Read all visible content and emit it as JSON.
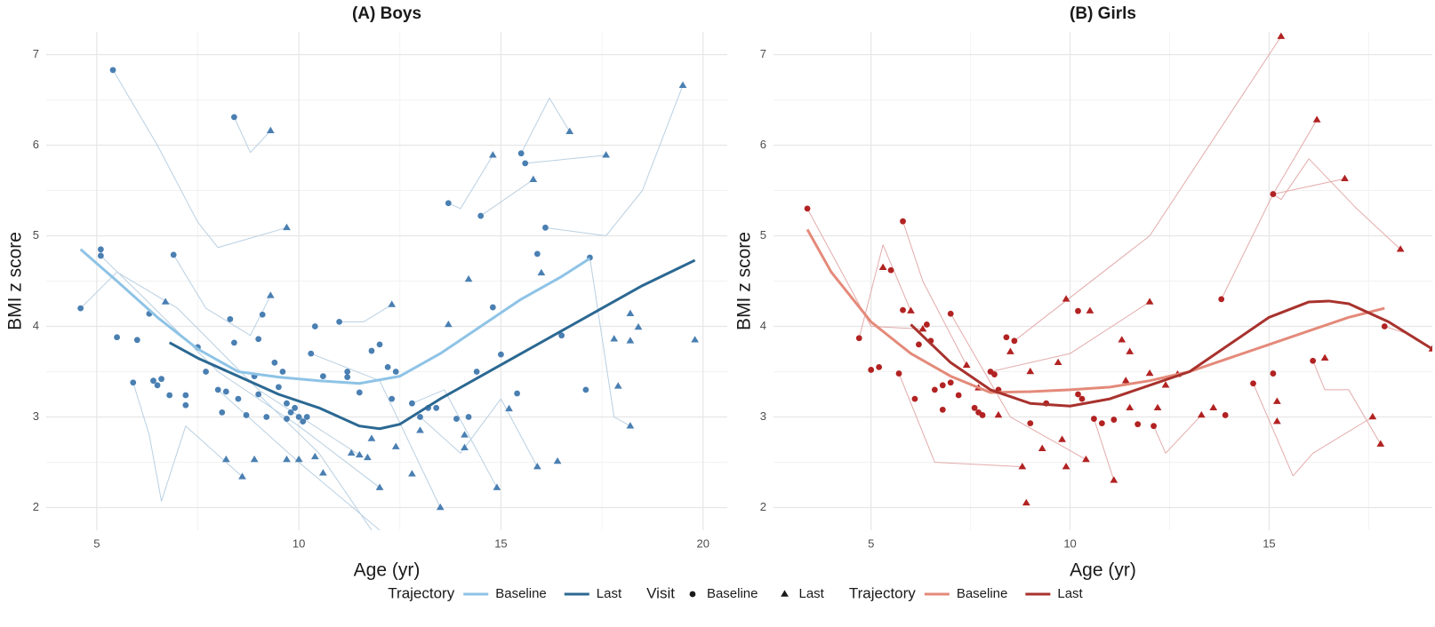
{
  "chart_data": [
    {
      "type": "scatter",
      "title": "(A) Boys",
      "xlabel": "Age (yr)",
      "ylabel": "BMI z score",
      "xlim": [
        3.75,
        20.6
      ],
      "ylim": [
        1.75,
        7.25
      ],
      "xticks": [
        5,
        10,
        15,
        20
      ],
      "yticks": [
        2,
        3,
        4,
        5,
        6,
        7
      ],
      "grid": true,
      "trajectory_color": "#b9d0e2",
      "trajectories": [
        {
          "x": [
            5.4,
            6.5,
            7.5,
            8.0,
            9.7
          ],
          "y": [
            6.83,
            6.0,
            5.15,
            4.87,
            5.09
          ]
        },
        {
          "x": [
            8.4,
            8.8,
            9.3
          ],
          "y": [
            6.31,
            5.92,
            6.16
          ]
        },
        {
          "x": [
            13.7,
            14.0,
            14.8
          ],
          "y": [
            5.36,
            5.3,
            5.89
          ]
        },
        {
          "x": [
            14.5,
            15.8
          ],
          "y": [
            5.22,
            5.62
          ]
        },
        {
          "x": [
            15.6,
            17.6
          ],
          "y": [
            5.8,
            5.89
          ]
        },
        {
          "x": [
            15.5,
            16.2,
            16.7
          ],
          "y": [
            5.91,
            6.52,
            6.15
          ]
        },
        {
          "x": [
            16.1,
            17.6,
            18.5,
            19.5
          ],
          "y": [
            5.09,
            5.0,
            5.5,
            6.66
          ]
        },
        {
          "x": [
            6.9,
            7.7,
            8.8,
            9.3
          ],
          "y": [
            4.79,
            4.2,
            3.9,
            4.34
          ]
        },
        {
          "x": [
            5.9,
            6.3,
            6.6,
            7.2,
            8.6
          ],
          "y": [
            3.38,
            2.8,
            2.07,
            2.9,
            2.34
          ]
        },
        {
          "x": [
            4.6,
            5.5,
            7.0,
            9.0,
            11.5
          ],
          "y": [
            4.2,
            4.6,
            4.2,
            3.3,
            2.58
          ]
        },
        {
          "x": [
            5.1,
            6.2,
            8.0,
            10.0,
            12.0
          ],
          "y": [
            4.78,
            4.3,
            3.5,
            2.9,
            2.22
          ]
        },
        {
          "x": [
            9.0,
            10.5,
            11.8
          ],
          "y": [
            3.25,
            2.6,
            1.75
          ]
        },
        {
          "x": [
            11.0,
            11.6,
            12.3
          ],
          "y": [
            4.05,
            4.05,
            4.24
          ]
        },
        {
          "x": [
            17.2,
            17.8,
            18.2
          ],
          "y": [
            4.76,
            3.0,
            2.9
          ]
        },
        {
          "x": [
            13.0,
            14.0,
            15.0,
            15.9
          ],
          "y": [
            3.0,
            2.6,
            3.2,
            2.45
          ]
        },
        {
          "x": [
            8.0,
            10.0,
            12.0
          ],
          "y": [
            3.3,
            2.5,
            1.75
          ]
        },
        {
          "x": [
            10.3,
            12.0,
            13.5
          ],
          "y": [
            3.7,
            3.4,
            2.0
          ]
        },
        {
          "x": [
            12.8,
            13.6,
            14.9
          ],
          "y": [
            3.15,
            3.3,
            2.22
          ]
        }
      ],
      "series": [
        {
          "name": "Baseline",
          "style": "points",
          "marker": "circle",
          "color": "#4a7fb2",
          "x": [
            4.6,
            5.1,
            5.1,
            5.4,
            5.5,
            5.9,
            6.0,
            6.3,
            6.4,
            6.5,
            6.6,
            6.8,
            6.9,
            7.2,
            7.2,
            7.5,
            7.7,
            8.0,
            8.1,
            8.2,
            8.4,
            8.3,
            8.4,
            8.5,
            8.7,
            8.9,
            9.0,
            9.1,
            9.0,
            9.2,
            9.4,
            9.5,
            9.6,
            9.7,
            9.7,
            9.8,
            9.9,
            10.0,
            10.1,
            10.2,
            10.3,
            10.4,
            10.6,
            11.0,
            11.2,
            11.2,
            11.5,
            11.8,
            12.0,
            12.2,
            12.3,
            12.4,
            12.8,
            13.0,
            13.2,
            13.4,
            13.7,
            13.9,
            14.2,
            14.4,
            14.5,
            14.8,
            15.0,
            15.4,
            15.5,
            15.6,
            15.9,
            16.1,
            16.5,
            17.1,
            17.2
          ],
          "y": [
            4.2,
            4.85,
            4.78,
            6.83,
            3.88,
            3.38,
            3.85,
            4.14,
            3.4,
            3.35,
            3.42,
            3.24,
            4.79,
            3.13,
            3.24,
            3.77,
            3.5,
            3.3,
            3.05,
            3.28,
            6.31,
            4.08,
            3.82,
            3.2,
            3.02,
            3.45,
            3.86,
            4.13,
            3.25,
            3.0,
            3.6,
            3.33,
            3.5,
            3.15,
            2.98,
            3.05,
            3.1,
            3.0,
            2.95,
            3.0,
            3.7,
            4.0,
            3.45,
            4.05,
            3.5,
            3.44,
            3.27,
            3.73,
            3.8,
            3.55,
            3.2,
            3.5,
            3.15,
            3.0,
            3.1,
            3.1,
            5.36,
            2.98,
            3.0,
            3.5,
            5.22,
            4.21,
            3.69,
            3.26,
            5.91,
            5.8,
            4.8,
            5.09,
            3.9,
            3.3,
            4.76
          ]
        },
        {
          "name": "Last",
          "style": "points",
          "marker": "triangle",
          "color": "#4a7fb2",
          "x": [
            6.7,
            8.2,
            8.6,
            8.9,
            9.3,
            9.3,
            9.7,
            9.7,
            10.0,
            10.4,
            10.6,
            11.3,
            11.5,
            11.7,
            11.8,
            12.0,
            12.3,
            12.4,
            12.8,
            13.0,
            13.5,
            13.7,
            14.1,
            14.1,
            14.2,
            14.8,
            14.9,
            15.2,
            15.8,
            15.9,
            16.0,
            16.4,
            16.7,
            17.6,
            17.8,
            17.9,
            18.2,
            18.2,
            18.2,
            18.4,
            19.5,
            19.8
          ],
          "y": [
            4.27,
            2.53,
            2.34,
            2.53,
            6.16,
            4.34,
            5.09,
            2.53,
            2.53,
            2.56,
            2.38,
            2.6,
            2.58,
            2.55,
            2.76,
            2.22,
            4.24,
            2.67,
            2.37,
            2.85,
            2.0,
            4.02,
            2.66,
            2.8,
            4.52,
            5.89,
            2.22,
            3.09,
            5.62,
            2.45,
            4.59,
            2.51,
            6.15,
            5.89,
            3.86,
            3.34,
            4.14,
            3.84,
            2.9,
            3.99,
            6.66,
            3.85
          ]
        },
        {
          "name": "Baseline",
          "style": "line",
          "color": "#8ec3e6",
          "x": [
            4.6,
            5.5,
            6.5,
            7.5,
            8.5,
            9.5,
            10.5,
            11.5,
            12.5,
            13.5,
            14.5,
            15.5,
            16.5,
            17.2
          ],
          "y": [
            4.85,
            4.5,
            4.1,
            3.75,
            3.5,
            3.44,
            3.4,
            3.37,
            3.45,
            3.7,
            4.0,
            4.3,
            4.55,
            4.75
          ]
        },
        {
          "name": "Last",
          "style": "line",
          "color": "#2b6892",
          "x": [
            6.8,
            7.5,
            8.5,
            9.5,
            10.5,
            11.5,
            12.0,
            12.5,
            13.5,
            14.5,
            15.5,
            16.5,
            17.5,
            18.5,
            19.8
          ],
          "y": [
            3.82,
            3.65,
            3.45,
            3.25,
            3.1,
            2.9,
            2.87,
            2.92,
            3.2,
            3.45,
            3.7,
            3.95,
            4.2,
            4.45,
            4.73
          ]
        }
      ]
    },
    {
      "type": "scatter",
      "title": "(B) Girls",
      "xlabel": "Age (yr)",
      "ylabel": "BMI z score",
      "xlim": [
        2.55,
        19.1
      ],
      "ylim": [
        1.75,
        7.25
      ],
      "xticks": [
        5,
        10,
        15
      ],
      "yticks": [
        2,
        3,
        4,
        5,
        6,
        7
      ],
      "grid": true,
      "trajectory_color": "#e3abab",
      "trajectories": [
        {
          "x": [
            8.6,
            12.0,
            15.3
          ],
          "y": [
            3.84,
            5.0,
            7.2
          ]
        },
        {
          "x": [
            13.8,
            15.1,
            16.2
          ],
          "y": [
            4.3,
            5.46,
            6.28
          ]
        },
        {
          "x": [
            15.1,
            15.3,
            16.0,
            17.2,
            18.3
          ],
          "y": [
            5.46,
            5.4,
            5.85,
            5.3,
            4.85
          ]
        },
        {
          "x": [
            15.1,
            16.9
          ],
          "y": [
            5.46,
            5.63
          ]
        },
        {
          "x": [
            4.7,
            5.3,
            6.0
          ],
          "y": [
            3.87,
            4.9,
            4.17
          ]
        },
        {
          "x": [
            5.8,
            6.3,
            7.4
          ],
          "y": [
            5.16,
            4.5,
            3.57
          ]
        },
        {
          "x": [
            3.4,
            5.0,
            6.3
          ],
          "y": [
            5.3,
            4.0,
            3.97
          ]
        },
        {
          "x": [
            16.1,
            16.4,
            17.0,
            17.8
          ],
          "y": [
            3.62,
            3.3,
            3.3,
            2.7
          ]
        },
        {
          "x": [
            14.6,
            15.6,
            16.1,
            17.6
          ],
          "y": [
            3.37,
            2.35,
            2.6,
            3.0
          ]
        },
        {
          "x": [
            7.0,
            8.5,
            10.4
          ],
          "y": [
            4.14,
            3.0,
            2.53
          ]
        },
        {
          "x": [
            5.7,
            6.6,
            8.8
          ],
          "y": [
            3.48,
            2.5,
            2.45
          ]
        },
        {
          "x": [
            10.6,
            11.1
          ],
          "y": [
            2.98,
            2.3
          ]
        },
        {
          "x": [
            12.1,
            12.4,
            13.3
          ],
          "y": [
            2.9,
            2.6,
            3.02
          ]
        },
        {
          "x": [
            8.0,
            10.0,
            12.0
          ],
          "y": [
            3.5,
            3.7,
            4.27
          ]
        },
        {
          "x": [
            17.9,
            18.6,
            19.1
          ],
          "y": [
            4.0,
            3.9,
            3.75
          ]
        }
      ],
      "series": [
        {
          "name": "Baseline",
          "style": "points",
          "marker": "circle",
          "color": "#b22222",
          "x": [
            3.4,
            4.7,
            5.0,
            5.2,
            5.5,
            5.7,
            5.8,
            5.8,
            6.1,
            6.2,
            6.4,
            6.5,
            6.6,
            6.8,
            6.8,
            7.0,
            7.0,
            7.2,
            7.6,
            7.7,
            7.8,
            8.0,
            8.1,
            8.2,
            8.4,
            8.6,
            9.0,
            9.4,
            10.2,
            10.2,
            10.3,
            10.6,
            10.8,
            11.1,
            11.7,
            12.1,
            13.8,
            13.9,
            14.6,
            15.1,
            15.1,
            16.1,
            17.9
          ],
          "y": [
            5.3,
            3.87,
            3.52,
            3.55,
            4.62,
            3.48,
            5.16,
            4.18,
            3.2,
            3.8,
            4.02,
            3.84,
            3.3,
            3.08,
            3.35,
            3.38,
            4.14,
            3.24,
            3.1,
            3.05,
            3.02,
            3.5,
            3.47,
            3.3,
            3.88,
            3.84,
            2.93,
            3.15,
            4.17,
            3.25,
            3.2,
            2.98,
            2.93,
            2.97,
            2.92,
            2.9,
            4.3,
            3.02,
            3.37,
            5.46,
            3.48,
            3.62,
            4.0
          ]
        },
        {
          "name": "Last",
          "style": "points",
          "marker": "triangle",
          "color": "#b22222",
          "x": [
            5.3,
            6.0,
            6.3,
            7.4,
            7.7,
            8.2,
            8.5,
            8.8,
            8.9,
            9.0,
            9.3,
            9.7,
            9.8,
            9.9,
            9.9,
            10.4,
            10.5,
            11.1,
            11.3,
            11.4,
            11.5,
            11.5,
            12.0,
            12.0,
            12.2,
            12.4,
            12.7,
            13.3,
            13.6,
            15.2,
            15.2,
            15.3,
            16.2,
            16.4,
            16.9,
            17.6,
            17.8,
            18.3,
            19.1
          ],
          "y": [
            4.65,
            4.17,
            3.97,
            3.57,
            3.32,
            3.02,
            3.72,
            2.45,
            2.05,
            3.5,
            2.65,
            3.6,
            2.75,
            4.3,
            2.45,
            2.53,
            4.17,
            2.3,
            3.85,
            3.4,
            3.72,
            3.1,
            4.27,
            3.48,
            3.1,
            3.35,
            3.47,
            3.02,
            3.1,
            2.95,
            3.17,
            7.2,
            6.28,
            3.65,
            5.63,
            3.0,
            2.7,
            4.85,
            3.75
          ]
        },
        {
          "name": "Baseline",
          "style": "line",
          "color": "#e48a7a",
          "x": [
            3.4,
            4.0,
            5,
            6,
            7,
            8,
            9,
            10,
            11,
            12,
            13,
            14,
            15,
            16,
            17,
            17.9
          ],
          "y": [
            5.07,
            4.6,
            4.05,
            3.7,
            3.45,
            3.27,
            3.28,
            3.3,
            3.33,
            3.4,
            3.5,
            3.65,
            3.8,
            3.95,
            4.1,
            4.2
          ]
        },
        {
          "name": "Last",
          "style": "line",
          "color": "#a8322d",
          "x": [
            6.0,
            7,
            8,
            9,
            10,
            11,
            12,
            13,
            14,
            15,
            16,
            16.5,
            17,
            18,
            19.1
          ],
          "y": [
            4.02,
            3.6,
            3.3,
            3.15,
            3.12,
            3.2,
            3.35,
            3.5,
            3.8,
            4.1,
            4.27,
            4.28,
            4.25,
            4.05,
            3.75
          ]
        }
      ]
    }
  ],
  "legend": [
    {
      "title": "Trajectory",
      "items": [
        {
          "label": "Baseline",
          "shape": "line",
          "color": "#8ec3e6"
        },
        {
          "label": "Last",
          "shape": "line",
          "color": "#2b6892"
        }
      ]
    },
    {
      "title": "Visit",
      "items": [
        {
          "label": "Baseline",
          "shape": "circle",
          "color": "#1a1a1a"
        },
        {
          "label": "Last",
          "shape": "triangle",
          "color": "#1a1a1a"
        }
      ]
    },
    {
      "title": "Trajectory",
      "items": [
        {
          "label": "Baseline",
          "shape": "line",
          "color": "#e48a7a"
        },
        {
          "label": "Last",
          "shape": "line",
          "color": "#a8322d"
        }
      ]
    }
  ]
}
